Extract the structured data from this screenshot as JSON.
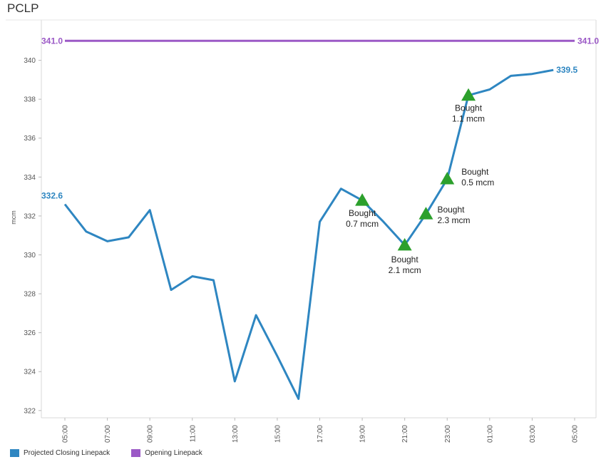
{
  "panel": {
    "title": "PCLP"
  },
  "chart_data": {
    "type": "line",
    "title": "",
    "xlabel": "",
    "ylabel": "mcm",
    "ylim": [
      321.7,
      342
    ],
    "yticks": [
      322,
      324,
      326,
      328,
      330,
      332,
      334,
      336,
      338,
      340
    ],
    "x_tick_labels": [
      "05:00",
      "07:00",
      "09:00",
      "11:00",
      "13:00",
      "15:00",
      "17:00",
      "19:00",
      "21:00",
      "23:00",
      "01:00",
      "03:00",
      "05:00"
    ],
    "categories": [
      "05:00",
      "06:00",
      "07:00",
      "08:00",
      "09:00",
      "10:00",
      "11:00",
      "12:00",
      "13:00",
      "14:00",
      "15:00",
      "16:00",
      "17:00",
      "18:00",
      "19:00",
      "20:00",
      "21:00",
      "22:00",
      "23:00",
      "00:00",
      "01:00",
      "02:00",
      "03:00",
      "04:00",
      "05:00"
    ],
    "series": [
      {
        "name": "Projected Closing Linepack",
        "color": "#2e86c1",
        "values": [
          332.6,
          331.2,
          330.7,
          330.9,
          332.3,
          328.2,
          328.9,
          328.7,
          323.5,
          326.9,
          324.8,
          322.6,
          331.7,
          333.4,
          332.8,
          331.7,
          330.5,
          332.1,
          333.9,
          338.2,
          338.5,
          339.2,
          339.3,
          339.5,
          null
        ],
        "start_label": "332.6",
        "end_label": "339.5"
      },
      {
        "name": "Opening Linepack",
        "color": "#9b59c6",
        "values": [
          341.0,
          341.0,
          341.0,
          341.0,
          341.0,
          341.0,
          341.0,
          341.0,
          341.0,
          341.0,
          341.0,
          341.0,
          341.0,
          341.0,
          341.0,
          341.0,
          341.0,
          341.0,
          341.0,
          341.0,
          341.0,
          341.0,
          341.0,
          341.0,
          341.0
        ],
        "start_label": "341.0",
        "end_label": "341.0"
      }
    ],
    "annotations": [
      {
        "x": "19:00",
        "y": 332.8,
        "line1": "Bought",
        "line2": "0.7 mcm"
      },
      {
        "x": "21:00",
        "y": 330.5,
        "line1": "Bought",
        "line2": "2.1 mcm"
      },
      {
        "x": "22:00",
        "y": 332.1,
        "line1": "Bought",
        "line2": "2.3 mcm"
      },
      {
        "x": "23:00",
        "y": 333.9,
        "line1": "Bought",
        "line2": "0.5 mcm"
      },
      {
        "x": "00:00",
        "y": 338.2,
        "line1": "Bought",
        "line2": "1.1 mcm"
      }
    ],
    "annotation_color": "#2ca02c",
    "grid": false,
    "legend_position": "bottom-left"
  },
  "legend": {
    "items": [
      {
        "label": "Projected Closing Linepack",
        "color": "#2e86c1"
      },
      {
        "label": "Opening Linepack",
        "color": "#9b59c6"
      }
    ]
  }
}
